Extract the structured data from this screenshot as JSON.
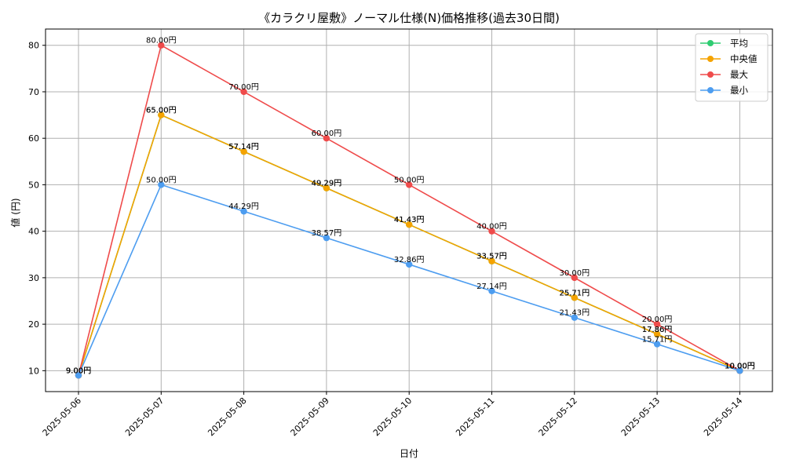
{
  "chart_data": {
    "type": "line",
    "title": "《カラクリ屋敷》ノーマル仕様(N)価格推移(過去30日間)",
    "xlabel": "日付",
    "ylabel": "値 (円)",
    "categories": [
      "2025-05-06",
      "2025-05-07",
      "2025-05-08",
      "2025-05-09",
      "2025-05-10",
      "2025-05-11",
      "2025-05-12",
      "2025-05-13",
      "2025-05-14"
    ],
    "ylim": [
      5.5,
      83.5
    ],
    "yticks": [
      10,
      20,
      30,
      40,
      50,
      60,
      70,
      80
    ],
    "grid": true,
    "legend_position": "top-right",
    "unit_suffix": "円",
    "series": [
      {
        "name": "平均",
        "color": "#2ecc71",
        "values": [
          9.0,
          65.0,
          57.14,
          49.29,
          41.43,
          33.57,
          25.71,
          17.86,
          10.0
        ]
      },
      {
        "name": "中央値",
        "color": "#f5a300",
        "values": [
          9.0,
          65.0,
          57.14,
          49.29,
          41.43,
          33.57,
          25.71,
          17.86,
          10.0
        ]
      },
      {
        "name": "最大",
        "color": "#ef4b4b",
        "values": [
          9.0,
          80.0,
          70.0,
          60.0,
          50.0,
          40.0,
          30.0,
          20.0,
          10.0
        ]
      },
      {
        "name": "最小",
        "color": "#4d9df0",
        "values": [
          9.0,
          50.0,
          44.29,
          38.57,
          32.86,
          27.14,
          21.43,
          15.71,
          10.0
        ]
      }
    ],
    "data_labels": {
      "平均": [
        "9.00円",
        "65.00円",
        "57.14円",
        "49.29円",
        "41.43円",
        "33.57円",
        "25.71円",
        "17.86円",
        "10.00円"
      ],
      "中央値": [
        "9.00円",
        "65.00円",
        "57.14円",
        "49.29円",
        "41.43円",
        "33.57円",
        "25.71円",
        "17.86円",
        "10.00円"
      ],
      "最大": [
        "9.00円",
        "80.00円",
        "70.00円",
        "60.00円",
        "50.00円",
        "40.00円",
        "30.00円",
        "20.00円",
        "10.00円"
      ],
      "最小": [
        "9.00円",
        "50.00円",
        "44.29円",
        "38.57円",
        "32.86円",
        "27.14円",
        "21.43円",
        "15.71円",
        "10.00円"
      ]
    }
  }
}
